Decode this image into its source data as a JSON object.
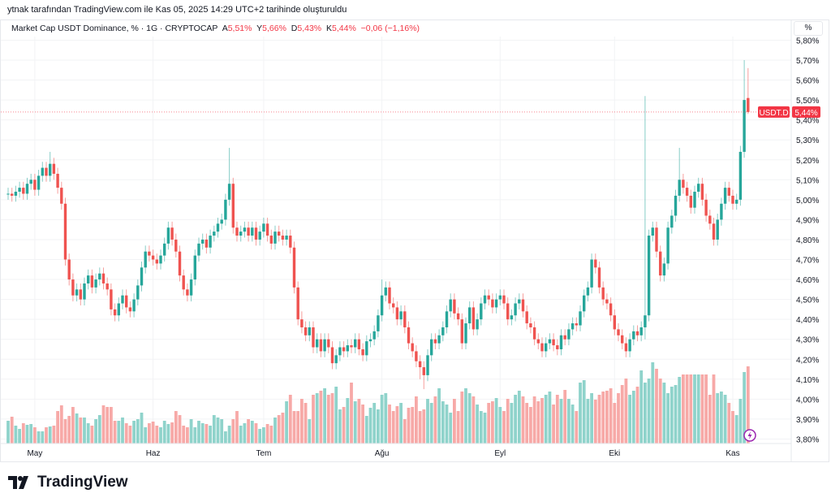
{
  "caption": "ytnak tarafından TradingView.com ile Kas 05, 2025 14:29 UTC+2 tarihinde oluşturuldu",
  "legend": {
    "title": "Market Cap USDT Dominance, % · 1G · CRYPTOCAP",
    "open_label": "A",
    "open": "5,51%",
    "high_label": "Y",
    "high": "5,66%",
    "low_label": "D",
    "low": "5,43%",
    "close_label": "K",
    "close": "5,44%",
    "change": "−0,06 (−1,16%)"
  },
  "scale_button": "%",
  "price_tag": {
    "symbol": "USDT.D",
    "value": "5,44%"
  },
  "logo_text": "TradingView",
  "colors": {
    "up": "#26a69a",
    "down": "#ef5350",
    "up_vol": "#8fd3cb",
    "down_vol": "#f7a9a7",
    "tag": "#f23645",
    "bolt": "#9c27b0"
  },
  "chart_data": {
    "type": "candlestick",
    "title": "Market Cap USDT Dominance, % · 1G · CRYPTOCAP",
    "ylabel": "%",
    "ylim": [
      3.78,
      5.82
    ],
    "y_ticks": [
      "5,80%",
      "5,70%",
      "5,60%",
      "5,50%",
      "5,40%",
      "5,30%",
      "5,20%",
      "5,10%",
      "5,00%",
      "4,90%",
      "4,80%",
      "4,70%",
      "4,60%",
      "4,50%",
      "4,40%",
      "4,30%",
      "4,20%",
      "4,10%",
      "4,00%",
      "3,90%",
      "3,80%"
    ],
    "x_ticks": [
      {
        "label": "May",
        "index": 7
      },
      {
        "label": "Haz",
        "index": 38
      },
      {
        "label": "Tem",
        "index": 67
      },
      {
        "label": "Ağu",
        "index": 98
      },
      {
        "label": "Eyl",
        "index": 129
      },
      {
        "label": "Eki",
        "index": 159
      },
      {
        "label": "Kas",
        "index": 190
      }
    ],
    "first_open": 5.03,
    "closes": [
      5.03,
      5.02,
      5.04,
      5.06,
      5.03,
      5.08,
      5.1,
      5.05,
      5.12,
      5.16,
      5.12,
      5.18,
      5.13,
      5.06,
      4.98,
      4.7,
      4.6,
      4.52,
      4.55,
      4.5,
      4.58,
      4.62,
      4.56,
      4.6,
      4.63,
      4.58,
      4.55,
      4.45,
      4.42,
      4.48,
      4.52,
      4.46,
      4.44,
      4.5,
      4.57,
      4.66,
      4.74,
      4.72,
      4.7,
      4.68,
      4.72,
      4.78,
      4.86,
      4.8,
      4.74,
      4.62,
      4.55,
      4.52,
      4.6,
      4.72,
      4.78,
      4.8,
      4.76,
      4.82,
      4.84,
      4.88,
      4.9,
      5.0,
      5.08,
      4.86,
      4.82,
      4.84,
      4.86,
      4.82,
      4.86,
      4.8,
      4.84,
      4.88,
      4.82,
      4.78,
      4.84,
      4.82,
      4.8,
      4.82,
      4.76,
      4.56,
      4.4,
      4.36,
      4.32,
      4.36,
      4.26,
      4.3,
      4.24,
      4.3,
      4.26,
      4.18,
      4.22,
      4.26,
      4.24,
      4.27,
      4.26,
      4.3,
      4.25,
      4.22,
      4.29,
      4.3,
      4.34,
      4.42,
      4.52,
      4.56,
      4.48,
      4.46,
      4.4,
      4.44,
      4.36,
      4.28,
      4.24,
      4.19,
      4.16,
      4.12,
      4.22,
      4.3,
      4.28,
      4.32,
      4.36,
      4.44,
      4.5,
      4.43,
      4.4,
      4.28,
      4.38,
      4.46,
      4.35,
      4.4,
      4.48,
      4.52,
      4.5,
      4.46,
      4.5,
      4.52,
      4.48,
      4.4,
      4.42,
      4.48,
      4.5,
      4.44,
      4.38,
      4.36,
      4.3,
      4.28,
      4.24,
      4.28,
      4.3,
      4.27,
      4.25,
      4.32,
      4.3,
      4.35,
      4.38,
      4.37,
      4.44,
      4.52,
      4.56,
      4.7,
      4.66,
      4.56,
      4.5,
      4.48,
      4.42,
      4.35,
      4.32,
      4.28,
      4.24,
      4.3,
      4.34,
      4.32,
      4.36,
      4.42,
      4.82,
      4.86,
      4.74,
      4.62,
      4.68,
      4.86,
      4.92,
      5.02,
      5.1,
      5.06,
      5.02,
      4.96,
      5.04,
      5.08,
      5.0,
      4.92,
      4.88,
      4.8,
      4.9,
      4.98,
      5.06,
      5.02,
      4.98,
      5.0,
      5.24,
      5.5,
      5.44
    ],
    "high_overrides": {
      "11": 5.24,
      "58": 5.26,
      "77": 4.44,
      "98": 4.6,
      "167": 5.52,
      "176": 5.26,
      "193": 5.7,
      "194": 5.66
    },
    "low_overrides": {
      "108": 4.1,
      "109": 4.05,
      "167": 4.3,
      "194": 5.43
    },
    "volume": [
      28,
      33,
      22,
      18,
      25,
      23,
      24,
      20,
      15,
      15,
      20,
      21,
      22,
      40,
      47,
      30,
      34,
      45,
      37,
      32,
      32,
      25,
      22,
      30,
      35,
      47,
      45,
      45,
      28,
      28,
      32,
      25,
      22,
      28,
      30,
      38,
      20,
      25,
      27,
      22,
      20,
      28,
      24,
      26,
      40,
      35,
      22,
      20,
      30,
      20,
      28,
      25,
      24,
      22,
      35,
      32,
      30,
      15,
      22,
      30,
      40,
      22,
      25,
      30,
      28,
      25,
      18,
      20,
      24,
      22,
      32,
      35,
      38,
      52,
      60,
      40,
      40,
      55,
      50,
      30,
      60,
      62,
      65,
      68,
      60,
      62,
      70,
      42,
      45,
      56,
      75,
      52,
      55,
      48,
      34,
      44,
      50,
      42,
      60,
      62,
      48,
      40,
      46,
      50,
      30,
      44,
      45,
      58,
      40,
      42,
      55,
      50,
      58,
      68,
      52,
      48,
      38,
      55,
      40,
      64,
      68,
      62,
      58,
      48,
      40,
      38,
      50,
      52,
      56,
      45,
      40,
      55,
      50,
      60,
      65,
      58,
      50,
      45,
      58,
      52,
      56,
      60,
      64,
      48,
      60,
      55,
      66,
      55,
      48,
      40,
      75,
      78,
      55,
      62,
      54,
      60,
      64,
      65,
      68,
      50,
      62,
      72,
      80,
      60,
      65,
      70,
      90,
      75,
      80,
      100,
      92,
      80,
      75,
      62,
      70,
      72,
      82,
      85,
      85,
      85,
      85,
      85,
      85,
      85,
      60,
      85,
      62,
      64,
      60,
      50,
      40,
      35,
      55,
      88,
      95
    ]
  }
}
